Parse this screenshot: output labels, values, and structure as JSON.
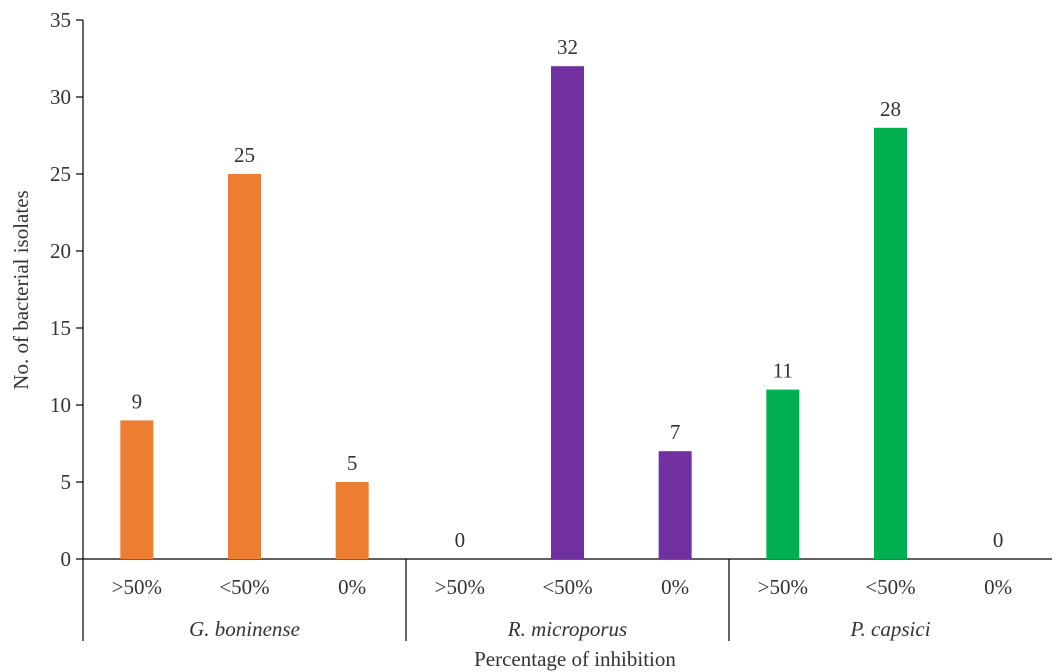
{
  "chart_data": {
    "type": "bar",
    "title": "",
    "xlabel": "Percentage of inhibition",
    "ylabel": "No. of bacterial isolates",
    "ylim": [
      0,
      35
    ],
    "yticks": [
      0,
      5,
      10,
      15,
      20,
      25,
      30,
      35
    ],
    "grid": false,
    "legend": "none",
    "groups": [
      {
        "name": "G. boninense",
        "color": "#ED7D31",
        "categories": [
          ">50%",
          "<50%",
          "0%"
        ],
        "values": [
          9,
          25,
          5
        ]
      },
      {
        "name": "R. microporus",
        "color": "#7030A0",
        "categories": [
          ">50%",
          "<50%",
          "0%"
        ],
        "values": [
          0,
          32,
          7
        ]
      },
      {
        "name": "P. capsici",
        "color": "#00B050",
        "categories": [
          ">50%",
          "<50%",
          "0%"
        ],
        "values": [
          11,
          28,
          0
        ]
      }
    ]
  }
}
